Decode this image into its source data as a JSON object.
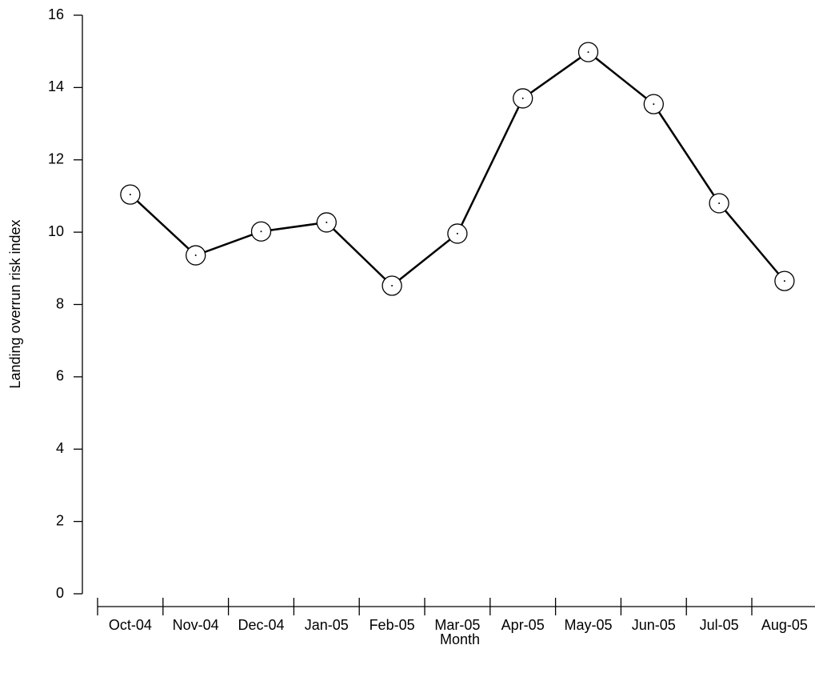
{
  "chart_data": {
    "type": "line",
    "x_label": "Month",
    "y_label": "Landing overrun risk index",
    "categories": [
      "Oct-04",
      "Nov-04",
      "Dec-04",
      "Jan-05",
      "Feb-05",
      "Mar-05",
      "Apr-05",
      "May-05",
      "Jun-05",
      "Jul-05",
      "Aug-05"
    ],
    "values": [
      11.04,
      9.36,
      10.02,
      10.27,
      8.52,
      9.96,
      13.7,
      14.98,
      13.54,
      10.8,
      8.65
    ],
    "color": "#000000",
    "ylim": [
      0,
      16
    ],
    "yticks": [
      0,
      2,
      4,
      6,
      8,
      10,
      12,
      14,
      16
    ]
  }
}
